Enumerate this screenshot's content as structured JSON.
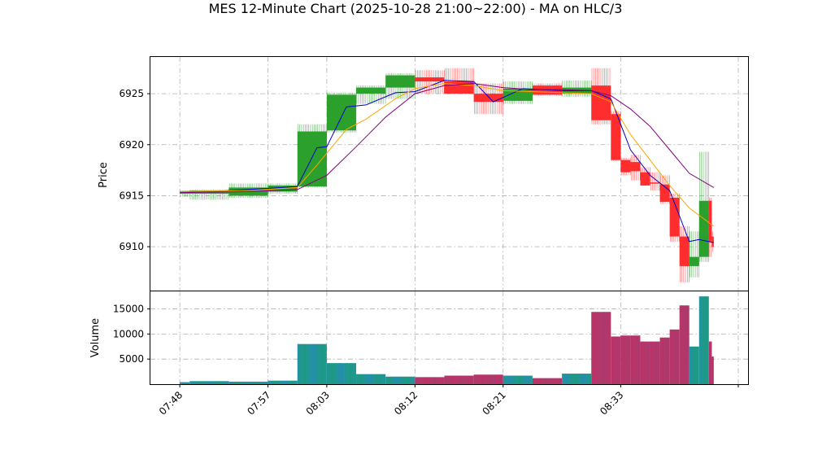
{
  "chart_data": {
    "type": "candlestick",
    "title": "MES 12-Minute Chart (2025-10-28 21:00~22:00) - MA on HLC/3",
    "price_panel": {
      "ylabel": "Price",
      "ylim": [
        6905.7,
        6928.6
      ],
      "yticks": [
        6910,
        6915,
        6920,
        6925
      ],
      "grid": true
    },
    "volume_panel": {
      "ylabel": "Volume",
      "ylim": [
        0,
        18500
      ],
      "yticks": [
        5000,
        10000,
        15000
      ],
      "grid": true
    },
    "x_axis": {
      "range": [
        "07:45",
        "08:46"
      ],
      "ticks": [
        "07:48",
        "07:57",
        "08:03",
        "08:12",
        "08:21",
        "08:33",
        ""
      ],
      "tick_times": [
        "07:48",
        "07:57",
        "08:03",
        "08:12",
        "08:21",
        "08:33",
        "08:45"
      ]
    },
    "colors": {
      "up": "#2ca02c",
      "down": "#ff2d2d",
      "volume_up": "#1f9a8a",
      "volume_down": "#b03a6e",
      "ma_fast": "#0000cd",
      "ma_mid": "#ffa500",
      "ma_slow": "#800080"
    },
    "bars": [
      {
        "t0": "07:48",
        "t1": "07:49",
        "o": 6915.2,
        "h": 6915.5,
        "l": 6914.9,
        "c": 6915.4,
        "v": 400
      },
      {
        "t0": "07:49",
        "t1": "07:53",
        "o": 6915.2,
        "h": 6915.6,
        "l": 6914.6,
        "c": 6915.5,
        "v": 600
      },
      {
        "t0": "07:53",
        "t1": "07:57",
        "o": 6915.0,
        "h": 6916.2,
        "l": 6914.8,
        "c": 6915.8,
        "v": 500
      },
      {
        "t0": "07:57",
        "t1": "08:00",
        "o": 6915.4,
        "h": 6916.2,
        "l": 6915.2,
        "c": 6916.0,
        "v": 700
      },
      {
        "t0": "08:00",
        "t1": "08:03",
        "o": 6915.9,
        "h": 6922.0,
        "l": 6915.8,
        "c": 6921.3,
        "v": 8000
      },
      {
        "t0": "08:03",
        "t1": "08:06",
        "o": 6921.4,
        "h": 6925.1,
        "l": 6921.2,
        "c": 6924.9,
        "v": 4200
      },
      {
        "t0": "08:06",
        "t1": "08:09",
        "o": 6925.0,
        "h": 6925.8,
        "l": 6924.0,
        "c": 6925.6,
        "v": 2000
      },
      {
        "t0": "08:09",
        "t1": "08:12",
        "o": 6925.6,
        "h": 6927.0,
        "l": 6924.5,
        "c": 6926.8,
        "v": 1500
      },
      {
        "t0": "08:12",
        "t1": "08:15",
        "o": 6926.6,
        "h": 6927.3,
        "l": 6925.0,
        "c": 6926.2,
        "v": 1400
      },
      {
        "t0": "08:15",
        "t1": "08:18",
        "o": 6926.2,
        "h": 6927.5,
        "l": 6925.0,
        "c": 6925.0,
        "v": 1700
      },
      {
        "t0": "08:18",
        "t1": "08:21",
        "o": 6925.0,
        "h": 6926.0,
        "l": 6923.0,
        "c": 6924.2,
        "v": 1900
      },
      {
        "t0": "08:21",
        "t1": "08:24",
        "o": 6924.3,
        "h": 6926.2,
        "l": 6924.0,
        "c": 6925.5,
        "v": 1700
      },
      {
        "t0": "08:24",
        "t1": "08:27",
        "o": 6925.8,
        "h": 6926.0,
        "l": 6924.8,
        "c": 6924.9,
        "v": 1200
      },
      {
        "t0": "08:27",
        "t1": "08:30",
        "o": 6925.0,
        "h": 6926.3,
        "l": 6924.7,
        "c": 6925.6,
        "v": 2100
      },
      {
        "t0": "08:30",
        "t1": "08:32",
        "o": 6925.8,
        "h": 6927.5,
        "l": 6922.0,
        "c": 6922.4,
        "v": 14400
      },
      {
        "t0": "08:32",
        "t1": "08:33",
        "o": 6923.0,
        "h": 6923.3,
        "l": 6918.4,
        "c": 6918.5,
        "v": 9500
      },
      {
        "t0": "08:33",
        "t1": "08:34",
        "o": 6918.5,
        "h": 6918.7,
        "l": 6917.0,
        "c": 6917.3,
        "v": 9700
      },
      {
        "t0": "08:34",
        "t1": "08:35",
        "o": 6918.3,
        "h": 6919.0,
        "l": 6916.5,
        "c": 6917.4,
        "v": 9700
      },
      {
        "t0": "08:35",
        "t1": "08:36",
        "o": 6917.3,
        "h": 6917.8,
        "l": 6916.0,
        "c": 6916.0,
        "v": 8500
      },
      {
        "t0": "08:36",
        "t1": "08:37",
        "o": 6916.3,
        "h": 6917.3,
        "l": 6915.5,
        "c": 6916.2,
        "v": 8500
      },
      {
        "t0": "08:37",
        "t1": "08:38",
        "o": 6916.1,
        "h": 6917.0,
        "l": 6914.2,
        "c": 6914.4,
        "v": 9300
      },
      {
        "t0": "08:38",
        "t1": "08:39",
        "o": 6914.8,
        "h": 6915.2,
        "l": 6910.5,
        "c": 6911.0,
        "v": 10900
      },
      {
        "t0": "08:39",
        "t1": "08:40",
        "o": 6911.0,
        "h": 6912.0,
        "l": 6906.5,
        "c": 6908.1,
        "v": 15700
      },
      {
        "t0": "08:40",
        "t1": "08:41",
        "o": 6908.1,
        "h": 6911.5,
        "l": 6907.0,
        "c": 6909.0,
        "v": 7500
      },
      {
        "t0": "08:41",
        "t1": "08:42",
        "o": 6909.0,
        "h": 6919.3,
        "l": 6908.5,
        "c": 6914.5,
        "v": 17500
      },
      {
        "t0": "08:42",
        "t1": "08:42.3",
        "o": 6914.5,
        "h": 6914.8,
        "l": 6909.0,
        "c": 6910.5,
        "v": 8500
      },
      {
        "t0": "08:42.3",
        "t1": "08:42.5",
        "o": 6911.0,
        "h": 6911.5,
        "l": 6909.5,
        "c": 6910.0,
        "v": 5500
      }
    ],
    "moving_averages": [
      {
        "key": "ma_fast",
        "x": [
          "07:48",
          "07:51",
          "07:55",
          "08:00",
          "08:02",
          "08:03",
          "08:05",
          "08:07",
          "08:10",
          "08:12",
          "08:15",
          "08:18",
          "08:20",
          "08:23",
          "08:27",
          "08:30",
          "08:32",
          "08:34",
          "08:36",
          "08:38",
          "08:39",
          "08:40",
          "08:41",
          "08:42.5"
        ],
        "y": [
          6915.4,
          6915.4,
          6915.6,
          6915.9,
          6919.7,
          6919.8,
          6923.7,
          6923.9,
          6925.1,
          6925.2,
          6926.3,
          6926.2,
          6924.2,
          6925.5,
          6925.3,
          6925.3,
          6924.5,
          6919.5,
          6917.0,
          6915.5,
          6913.0,
          6910.5,
          6910.7,
          6910.4
        ]
      },
      {
        "key": "ma_mid",
        "x": [
          "07:48",
          "07:55",
          "08:00",
          "08:02",
          "08:05",
          "08:07",
          "08:10",
          "08:12",
          "08:15",
          "08:18",
          "08:21",
          "08:24",
          "08:27",
          "08:30",
          "08:32",
          "08:34",
          "08:36",
          "08:38",
          "08:40",
          "08:42.5"
        ],
        "y": [
          6915.4,
          6915.5,
          6915.8,
          6918.0,
          6921.5,
          6922.5,
          6924.5,
          6925.5,
          6926.0,
          6925.8,
          6925.3,
          6925.2,
          6925.1,
          6925.0,
          6924.2,
          6921.0,
          6918.5,
          6916.0,
          6913.8,
          6912.0
        ]
      },
      {
        "key": "ma_slow",
        "x": [
          "07:48",
          "07:55",
          "08:00",
          "08:03",
          "08:06",
          "08:09",
          "08:12",
          "08:15",
          "08:18",
          "08:21",
          "08:24",
          "08:27",
          "08:30",
          "08:32",
          "08:34",
          "08:36",
          "08:38",
          "08:40",
          "08:42.5"
        ],
        "y": [
          6915.3,
          6915.4,
          6915.6,
          6917.0,
          6919.8,
          6922.7,
          6925.0,
          6925.8,
          6926.0,
          6925.6,
          6925.4,
          6925.4,
          6925.3,
          6924.8,
          6923.5,
          6921.8,
          6919.5,
          6917.2,
          6915.8
        ]
      }
    ]
  }
}
